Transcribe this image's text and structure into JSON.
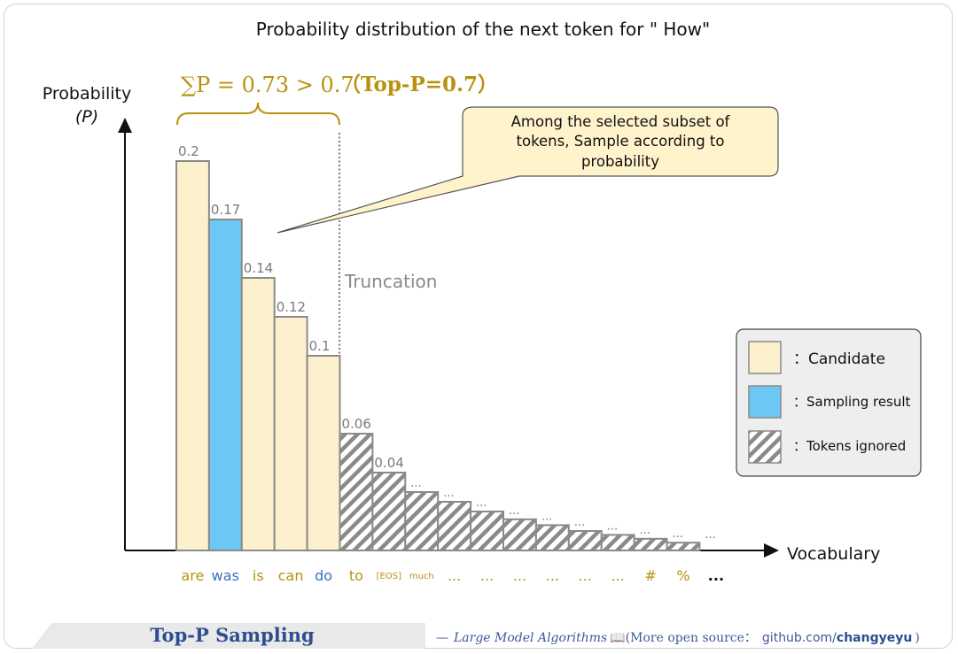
{
  "chart_data": {
    "type": "bar",
    "title": "Probability distribution of the next token for \" How\"",
    "ylabel": "Probability",
    "ylabel_symbol": "(P)",
    "xlabel": "Vocabulary",
    "categories": [
      "are",
      "was",
      "is",
      "can",
      "do",
      "to",
      "[EOS]",
      "much",
      "...",
      "...",
      "...",
      "...",
      "...",
      "...",
      "#",
      "%",
      "..."
    ],
    "values": [
      0.2,
      0.17,
      0.14,
      0.12,
      0.1,
      0.06,
      0.04,
      null,
      null,
      null,
      null,
      null,
      null,
      null,
      null,
      null,
      null
    ],
    "value_labels": [
      "0.2",
      "0.17",
      "0.14",
      "0.12",
      "0.1",
      "0.06",
      "0.04",
      "...",
      "...",
      "...",
      "...",
      "...",
      "...",
      "...",
      "...",
      "...",
      "..."
    ],
    "tail_values_estimated": [
      0.03,
      0.025,
      0.02,
      0.016,
      0.013,
      0.01,
      0.008,
      0.006,
      0.004
    ],
    "bar_kind": [
      "candidate",
      "sampled",
      "candidate",
      "candidate",
      "candidate",
      "ignored",
      "ignored",
      "ignored",
      "ignored",
      "ignored",
      "ignored",
      "ignored",
      "ignored",
      "ignored",
      "ignored",
      "ignored",
      "none"
    ],
    "category_kind": [
      "candidate",
      "sampled",
      "candidate",
      "candidate",
      "sampled",
      "candidate",
      "ignored-small",
      "ignored-small",
      "ignored",
      "ignored",
      "ignored",
      "ignored",
      "ignored",
      "ignored",
      "ignored",
      "ignored",
      "plain"
    ],
    "sum_formula": "∑P = 0.73 > 0.7",
    "top_p_label": "（Top-P=0.7）",
    "truncation_label": "Truncation",
    "callout_lines": [
      "Among the selected subset of",
      "tokens, Sample according to",
      "probability"
    ],
    "legend": [
      {
        "kind": "candidate",
        "label": "：Candidate"
      },
      {
        "kind": "sampled",
        "label": "：Sampling result"
      },
      {
        "kind": "ignored",
        "label": "：Tokens ignored"
      }
    ],
    "colors": {
      "candidate_fill": "#fdf0cc",
      "sampled_fill": "#6cc7f5",
      "bar_stroke": "#8a8a8a",
      "hatch": "#8a8a8a",
      "gold": "#b8920f",
      "blue_text": "#3a72c4",
      "callout_fill": "#fff3cc",
      "legend_bg": "#eeeeee"
    }
  },
  "footer": {
    "title": "Top-P Sampling",
    "dash": "—",
    "series": "Large Model Algorithms",
    "book_icon": "📖",
    "more": "(More open source：",
    "gh_prefix": "github.com/",
    "gh_user": "changyeyu",
    "close": ")"
  }
}
